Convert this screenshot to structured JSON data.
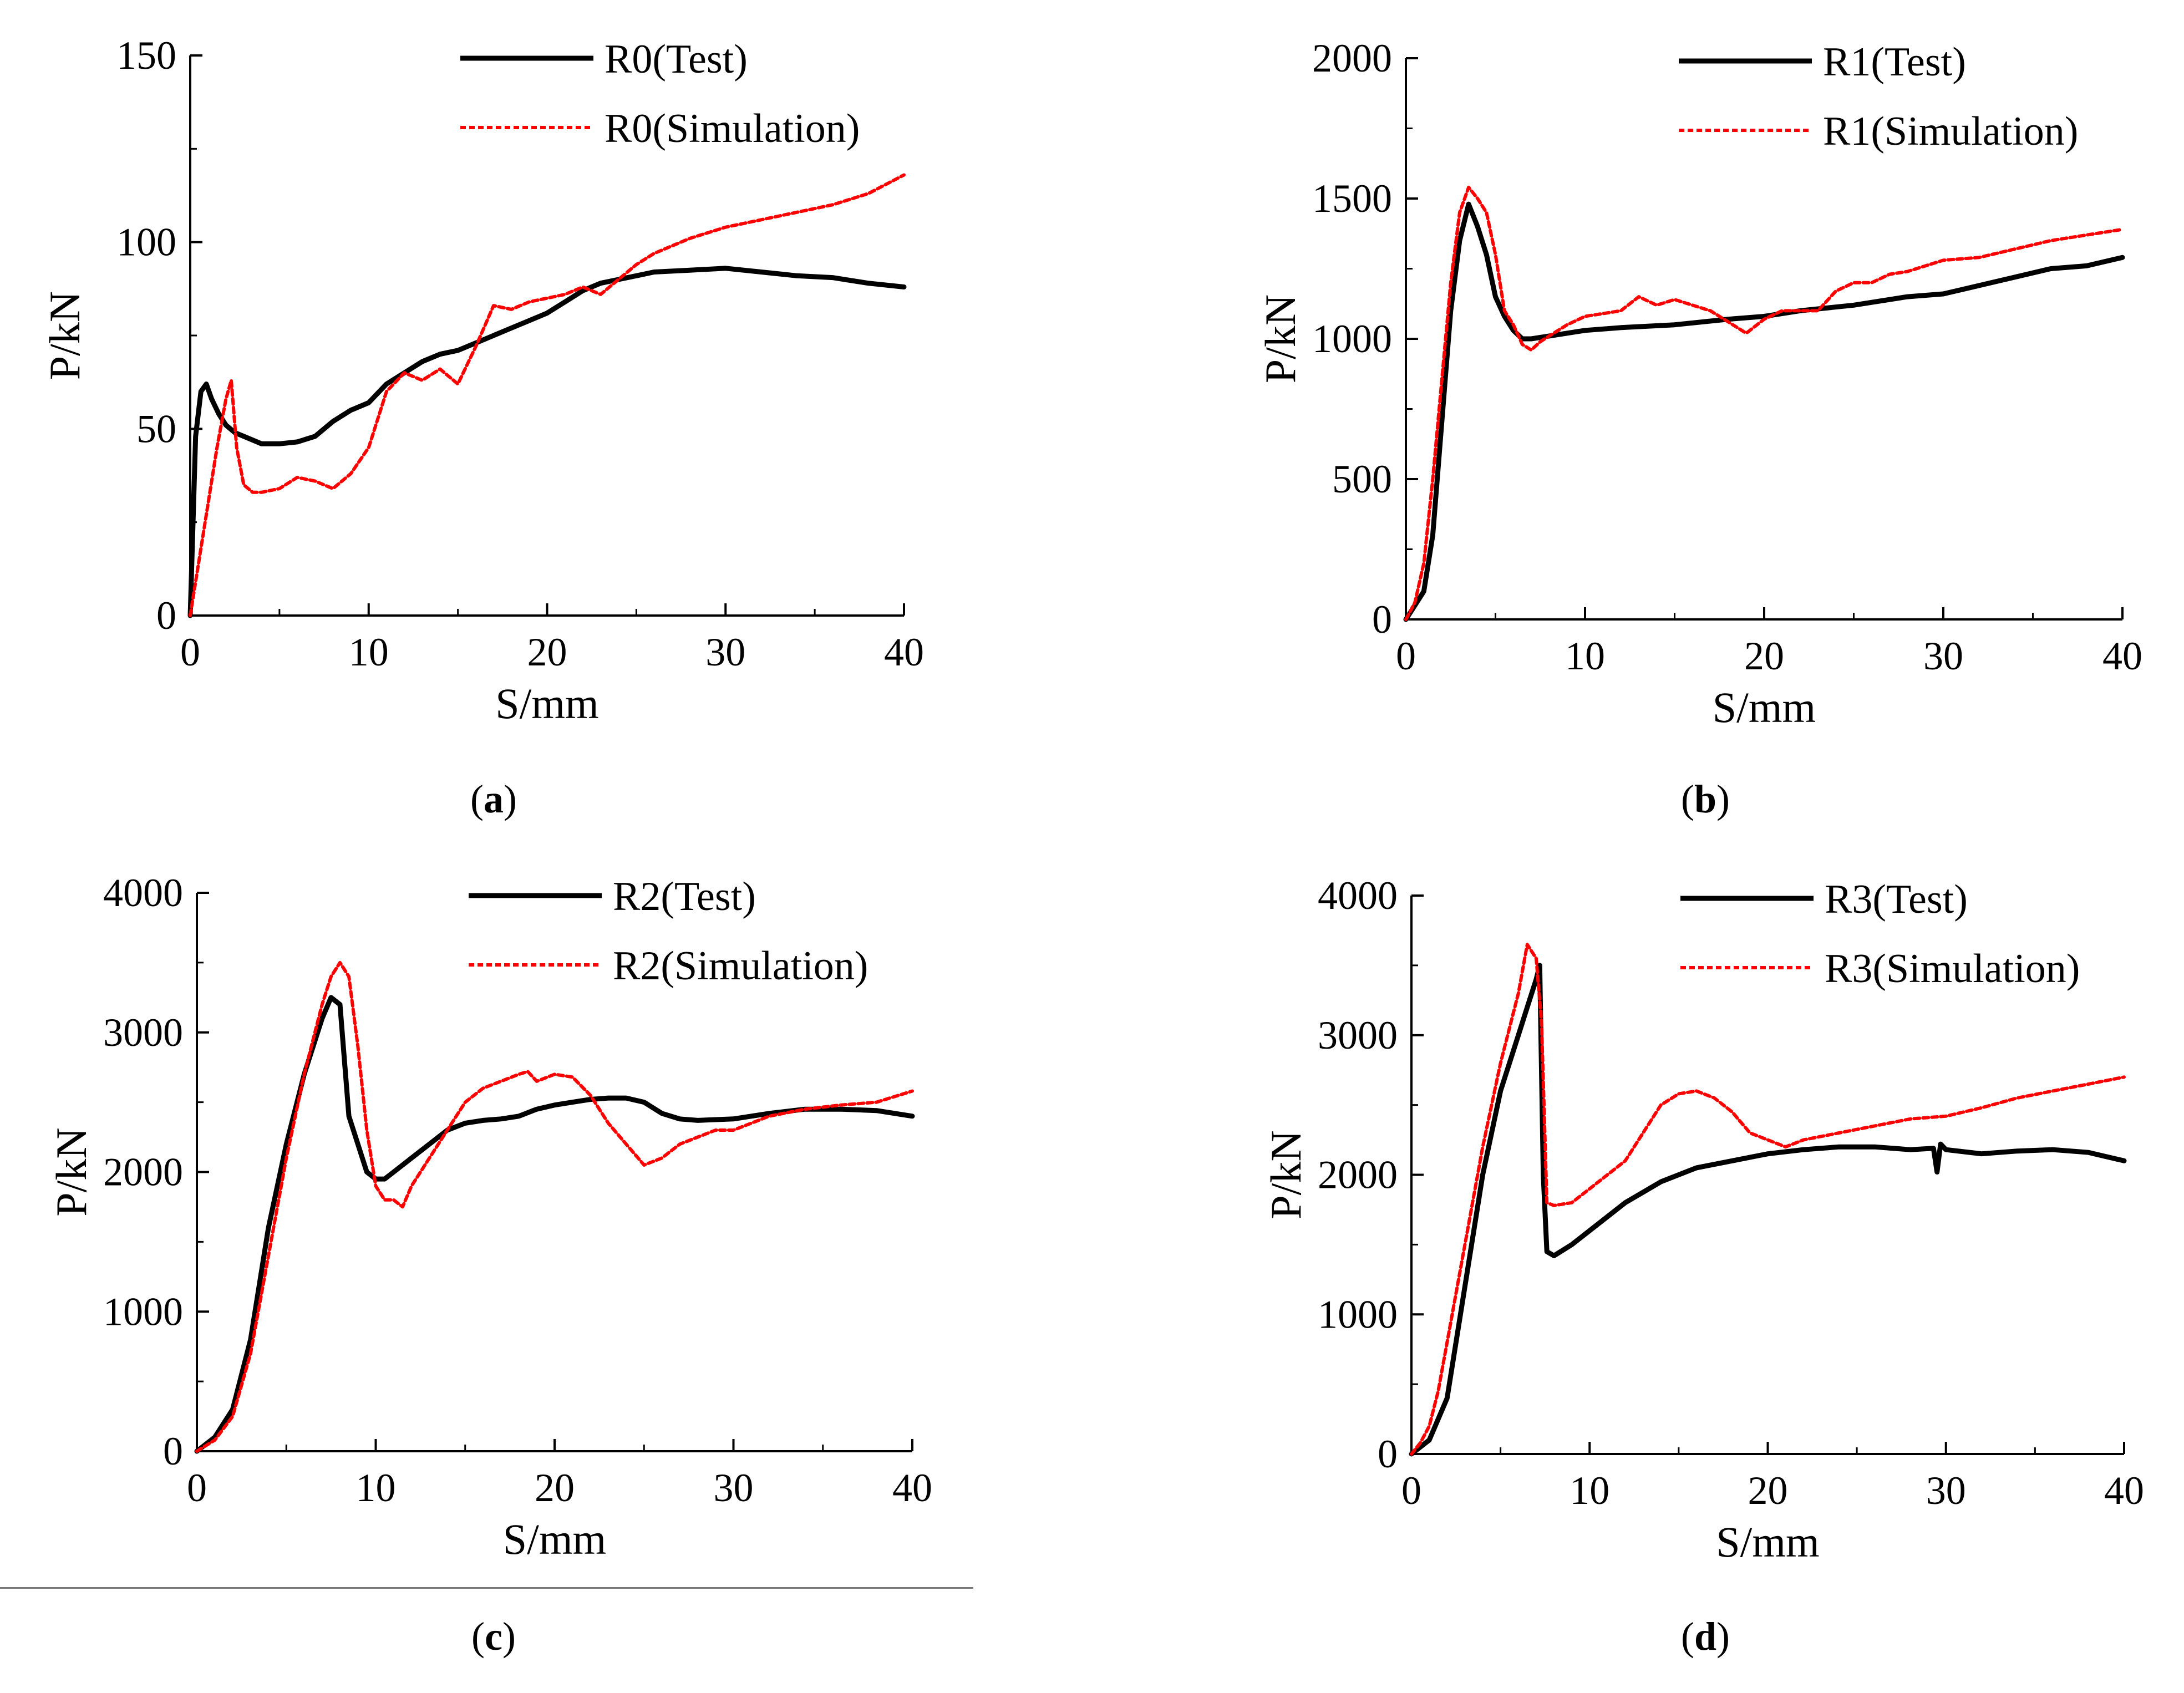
{
  "figure": {
    "captions": [
      {
        "open": "(",
        "letter": "a",
        "close": ")"
      },
      {
        "open": "(",
        "letter": "b",
        "close": ")"
      },
      {
        "open": "(",
        "letter": "c",
        "close": ")"
      },
      {
        "open": "(",
        "letter": "d",
        "close": ")"
      }
    ]
  },
  "colors": {
    "test": "#000000",
    "simulation": "#ff0000",
    "axis": "#000000"
  },
  "chart_data": [
    {
      "type": "line",
      "xlabel": "S/mm",
      "ylabel": "P/kN",
      "xlim": [
        0,
        40
      ],
      "ylim": [
        0,
        150
      ],
      "xticks": [
        0,
        10,
        20,
        30,
        40
      ],
      "yticks": [
        0,
        50,
        100,
        150
      ],
      "legend": "top-right",
      "series": [
        {
          "name": "R0(Test)",
          "style": "solid",
          "x": [
            0,
            0.3,
            0.6,
            0.9,
            1.2,
            1.6,
            2,
            2.5,
            3,
            4,
            5,
            6,
            7,
            8,
            9,
            10,
            11,
            12,
            13,
            14,
            15,
            16,
            17,
            18,
            19,
            20,
            21,
            22,
            23,
            24,
            25,
            26,
            28,
            30,
            32,
            34,
            36,
            38,
            40
          ],
          "y": [
            0,
            48,
            60,
            62,
            58,
            54,
            51,
            49,
            48,
            46,
            46,
            46.5,
            48,
            52,
            55,
            57,
            62,
            65,
            68,
            70,
            71,
            73,
            75,
            77,
            79,
            81,
            84,
            87,
            89,
            90,
            91,
            92,
            92.5,
            93,
            92,
            91,
            90.5,
            89,
            88
          ]
        },
        {
          "name": "R0(Simulation)",
          "style": "dashed",
          "x": [
            0,
            0.5,
            1,
            1.5,
            2,
            2.3,
            2.6,
            3,
            3.5,
            4,
            5,
            6,
            7,
            8,
            9,
            10,
            11,
            12,
            13,
            14,
            15,
            16,
            17,
            18,
            19,
            20,
            21,
            22,
            23,
            24,
            25,
            26,
            28,
            30,
            32,
            34,
            36,
            38,
            40
          ],
          "y": [
            0,
            15,
            30,
            45,
            58,
            63,
            45,
            35,
            33,
            33,
            34,
            37,
            36,
            34,
            38,
            45,
            60,
            65,
            63,
            66,
            62,
            72,
            83,
            82,
            84,
            85,
            86,
            88,
            86,
            90,
            94,
            97,
            101,
            104,
            106,
            108,
            110,
            113,
            118
          ]
        }
      ]
    },
    {
      "type": "line",
      "xlabel": "S/mm",
      "ylabel": "P/kN",
      "xlim": [
        0,
        40
      ],
      "ylim": [
        0,
        2000
      ],
      "xticks": [
        0,
        10,
        20,
        30,
        40
      ],
      "yticks": [
        0,
        500,
        1000,
        1500,
        2000
      ],
      "legend": "top-right",
      "series": [
        {
          "name": "R1(Test)",
          "style": "solid",
          "x": [
            0,
            0.5,
            1,
            1.5,
            2,
            2.5,
            3,
            3.5,
            4,
            4.5,
            5,
            5.5,
            6,
            6.5,
            7,
            8,
            10,
            12,
            15,
            18,
            20,
            22,
            25,
            28,
            30,
            32,
            34,
            36,
            38,
            40
          ],
          "y": [
            0,
            50,
            100,
            300,
            700,
            1100,
            1350,
            1480,
            1400,
            1300,
            1150,
            1080,
            1030,
            1000,
            1000,
            1010,
            1030,
            1040,
            1050,
            1070,
            1080,
            1100,
            1120,
            1150,
            1160,
            1190,
            1220,
            1250,
            1260,
            1290
          ]
        },
        {
          "name": "R1(Simulation)",
          "style": "dashed",
          "x": [
            0,
            0.5,
            1,
            1.5,
            2,
            2.5,
            3,
            3.5,
            4,
            4.5,
            5,
            5.5,
            6,
            6.5,
            7,
            7.5,
            8,
            9,
            10,
            11,
            12,
            13,
            14,
            15,
            16,
            17,
            18,
            19,
            20,
            21,
            22,
            23,
            24,
            25,
            26,
            27,
            28,
            30,
            32,
            34,
            36,
            38,
            40
          ],
          "y": [
            0,
            60,
            200,
            500,
            850,
            1200,
            1450,
            1540,
            1500,
            1450,
            1300,
            1100,
            1050,
            980,
            960,
            990,
            1010,
            1050,
            1080,
            1090,
            1100,
            1150,
            1120,
            1140,
            1120,
            1100,
            1060,
            1020,
            1070,
            1100,
            1100,
            1100,
            1170,
            1200,
            1200,
            1230,
            1240,
            1280,
            1290,
            1320,
            1350,
            1370,
            1390
          ]
        }
      ]
    },
    {
      "type": "line",
      "xlabel": "S/mm",
      "ylabel": "P/kN",
      "xlim": [
        0,
        40
      ],
      "ylim": [
        0,
        4000
      ],
      "xticks": [
        0,
        10,
        20,
        30,
        40
      ],
      "yticks": [
        0,
        1000,
        2000,
        3000,
        4000
      ],
      "legend": "top-right",
      "series": [
        {
          "name": "R2(Test)",
          "style": "solid",
          "x": [
            0,
            1,
            2,
            3,
            4,
            5,
            6,
            7,
            7.5,
            8,
            8.5,
            9,
            9.5,
            10,
            10.5,
            11,
            12,
            13,
            14,
            15,
            16,
            17,
            18,
            19,
            20,
            21,
            22,
            23,
            24,
            25,
            26,
            27,
            28,
            30,
            32,
            34,
            36,
            38,
            40
          ],
          "y": [
            0,
            100,
            300,
            800,
            1600,
            2200,
            2700,
            3100,
            3250,
            3200,
            2400,
            2200,
            2000,
            1950,
            1950,
            2000,
            2100,
            2200,
            2300,
            2350,
            2370,
            2380,
            2400,
            2450,
            2480,
            2500,
            2520,
            2530,
            2530,
            2500,
            2420,
            2380,
            2370,
            2380,
            2420,
            2450,
            2450,
            2440,
            2400
          ]
        },
        {
          "name": "R2(Simulation)",
          "style": "dashed",
          "x": [
            0,
            1,
            2,
            3,
            4,
            5,
            6,
            7,
            7.5,
            8,
            8.5,
            9,
            9.5,
            10,
            10.5,
            11,
            11.5,
            12,
            13,
            14,
            15,
            16,
            17,
            18,
            18.5,
            19,
            20,
            21,
            22,
            23,
            24,
            25,
            26,
            27,
            28,
            29,
            30,
            32,
            34,
            36,
            38,
            40
          ],
          "y": [
            0,
            80,
            250,
            700,
            1400,
            2100,
            2700,
            3200,
            3400,
            3500,
            3400,
            2900,
            2300,
            1900,
            1800,
            1800,
            1750,
            1900,
            2100,
            2300,
            2500,
            2600,
            2650,
            2700,
            2720,
            2650,
            2700,
            2680,
            2550,
            2350,
            2200,
            2050,
            2100,
            2200,
            2250,
            2300,
            2300,
            2400,
            2450,
            2480,
            2500,
            2580
          ]
        }
      ]
    },
    {
      "type": "line",
      "xlabel": "S/mm",
      "ylabel": "P/kN",
      "xlim": [
        0,
        40
      ],
      "ylim": [
        0,
        4000
      ],
      "xticks": [
        0,
        10,
        20,
        30,
        40
      ],
      "yticks": [
        0,
        1000,
        2000,
        3000,
        4000
      ],
      "legend": "top-right",
      "series": [
        {
          "name": "R3(Test)",
          "style": "solid",
          "x": [
            0,
            1,
            2,
            3,
            4,
            5,
            6,
            6.5,
            7,
            7.2,
            7.4,
            7.6,
            8,
            9,
            10,
            12,
            14,
            16,
            18,
            20,
            22,
            24,
            26,
            28,
            29.3,
            29.5,
            29.7,
            30,
            32,
            34,
            36,
            38,
            40
          ],
          "y": [
            0,
            100,
            400,
            1200,
            2000,
            2600,
            3000,
            3200,
            3400,
            3500,
            2000,
            1450,
            1420,
            1500,
            1600,
            1800,
            1950,
            2050,
            2100,
            2150,
            2180,
            2200,
            2200,
            2180,
            2190,
            2020,
            2220,
            2180,
            2150,
            2170,
            2180,
            2160,
            2100
          ]
        },
        {
          "name": "R3(Simulation)",
          "style": "dashed",
          "x": [
            0,
            0.5,
            1,
            1.5,
            2,
            3,
            4,
            5,
            6,
            6.5,
            7,
            7.3,
            7.6,
            8,
            9,
            10,
            11,
            12,
            13,
            14,
            15,
            16,
            17,
            18,
            19,
            20,
            21,
            22,
            24,
            26,
            28,
            30,
            32,
            34,
            36,
            38,
            40
          ],
          "y": [
            0,
            80,
            200,
            450,
            800,
            1500,
            2200,
            2800,
            3300,
            3650,
            3550,
            3100,
            1800,
            1780,
            1800,
            1900,
            2000,
            2100,
            2300,
            2500,
            2580,
            2600,
            2550,
            2450,
            2300,
            2250,
            2200,
            2250,
            2300,
            2350,
            2400,
            2420,
            2480,
            2550,
            2600,
            2650,
            2700
          ]
        }
      ]
    }
  ]
}
